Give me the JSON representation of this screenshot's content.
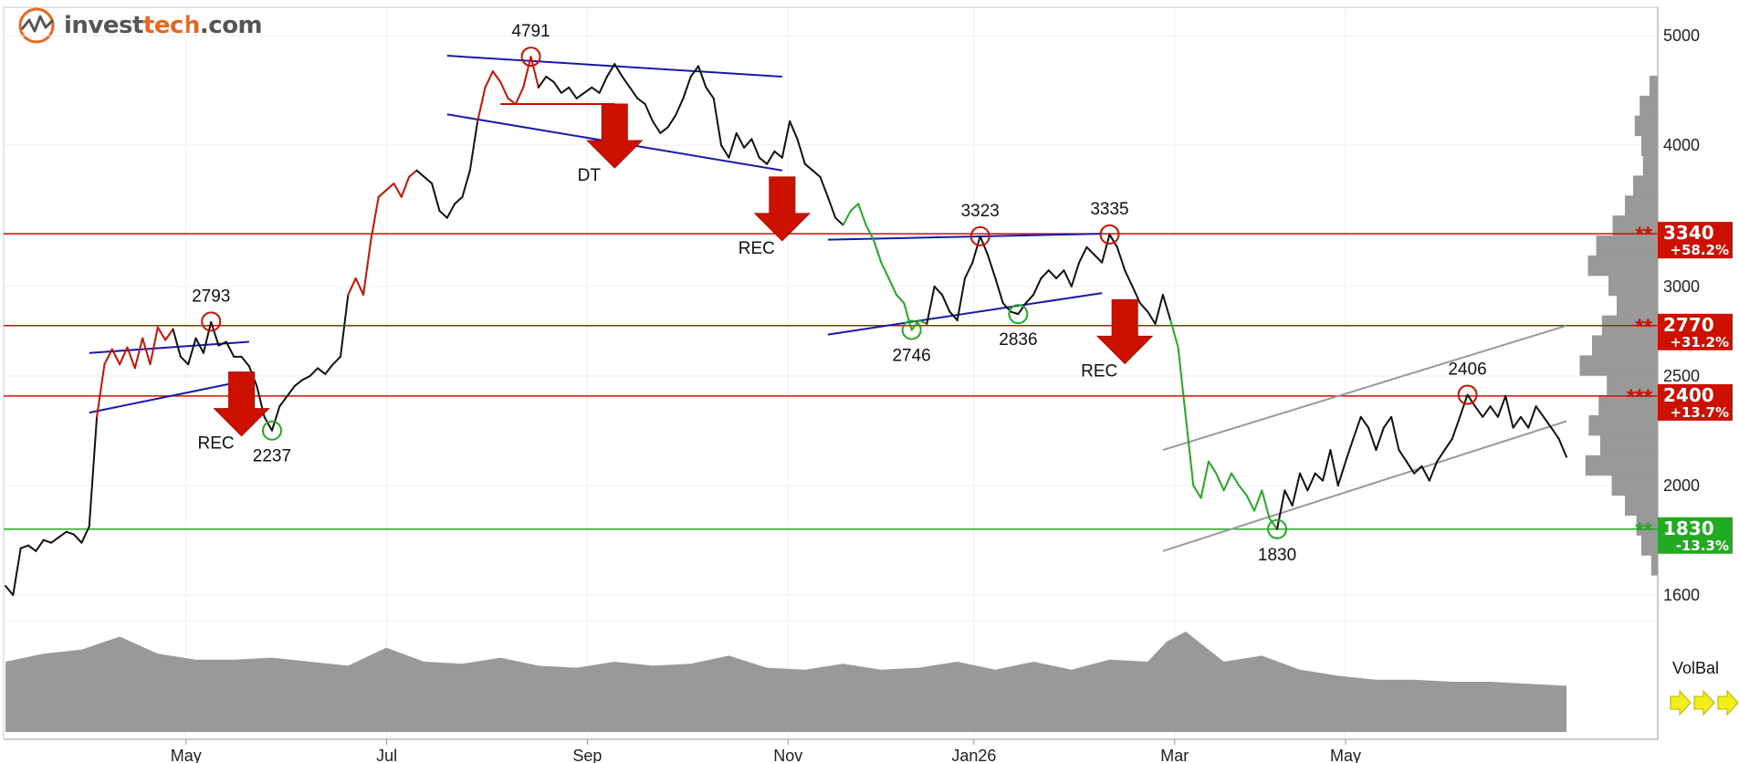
{
  "logo": {
    "pre": "invest",
    "accent": "tech",
    "post": ".com"
  },
  "chart_data": {
    "type": "line",
    "x_ticks": [
      "May",
      "Jul",
      "Sep",
      "Nov",
      "Jan26",
      "Mar",
      "May"
    ],
    "y_ticks": [
      "5000",
      "4000",
      "3000",
      "2500",
      "2000",
      "1600"
    ],
    "ylim": [
      1600,
      5200
    ],
    "y_scale": "log",
    "grid": true,
    "price": [
      [
        0,
        1630
      ],
      [
        2,
        1600
      ],
      [
        4,
        1760
      ],
      [
        6,
        1770
      ],
      [
        8,
        1750
      ],
      [
        10,
        1790
      ],
      [
        12,
        1780
      ],
      [
        14,
        1800
      ],
      [
        16,
        1820
      ],
      [
        18,
        1810
      ],
      [
        20,
        1780
      ],
      [
        22,
        1840
      ],
      [
        24,
        2300
      ],
      [
        26,
        2560
      ],
      [
        28,
        2640
      ],
      [
        30,
        2560
      ],
      [
        32,
        2650
      ],
      [
        34,
        2540
      ],
      [
        36,
        2700
      ],
      [
        38,
        2560
      ],
      [
        40,
        2760
      ],
      [
        42,
        2690
      ],
      [
        44,
        2750
      ],
      [
        46,
        2600
      ],
      [
        48,
        2560
      ],
      [
        50,
        2700
      ],
      [
        52,
        2620
      ],
      [
        54,
        2790
      ],
      [
        56,
        2660
      ],
      [
        58,
        2680
      ],
      [
        60,
        2600
      ],
      [
        62,
        2600
      ],
      [
        64,
        2550
      ],
      [
        66,
        2450
      ],
      [
        68,
        2300
      ],
      [
        70,
        2237
      ],
      [
        72,
        2350
      ],
      [
        74,
        2400
      ],
      [
        76,
        2450
      ],
      [
        78,
        2480
      ],
      [
        80,
        2500
      ],
      [
        82,
        2540
      ],
      [
        84,
        2510
      ],
      [
        86,
        2560
      ],
      [
        88,
        2600
      ],
      [
        90,
        2950
      ],
      [
        92,
        3050
      ],
      [
        94,
        2950
      ],
      [
        96,
        3300
      ],
      [
        98,
        3600
      ],
      [
        100,
        3650
      ],
      [
        102,
        3700
      ],
      [
        104,
        3600
      ],
      [
        106,
        3750
      ],
      [
        108,
        3800
      ],
      [
        110,
        3750
      ],
      [
        112,
        3700
      ],
      [
        114,
        3500
      ],
      [
        116,
        3450
      ],
      [
        118,
        3550
      ],
      [
        120,
        3600
      ],
      [
        122,
        3800
      ],
      [
        124,
        4200
      ],
      [
        126,
        4500
      ],
      [
        128,
        4650
      ],
      [
        130,
        4550
      ],
      [
        132,
        4400
      ],
      [
        134,
        4350
      ],
      [
        136,
        4500
      ],
      [
        138,
        4791
      ],
      [
        140,
        4500
      ],
      [
        142,
        4600
      ],
      [
        144,
        4550
      ],
      [
        146,
        4450
      ],
      [
        148,
        4500
      ],
      [
        150,
        4400
      ],
      [
        152,
        4450
      ],
      [
        154,
        4500
      ],
      [
        156,
        4450
      ],
      [
        158,
        4600
      ],
      [
        160,
        4720
      ],
      [
        162,
        4600
      ],
      [
        164,
        4500
      ],
      [
        166,
        4400
      ],
      [
        168,
        4350
      ],
      [
        170,
        4200
      ],
      [
        172,
        4100
      ],
      [
        174,
        4150
      ],
      [
        176,
        4250
      ],
      [
        178,
        4400
      ],
      [
        180,
        4600
      ],
      [
        182,
        4700
      ],
      [
        184,
        4500
      ],
      [
        186,
        4400
      ],
      [
        188,
        4000
      ],
      [
        190,
        3900
      ],
      [
        192,
        4100
      ],
      [
        194,
        3980
      ],
      [
        196,
        4050
      ],
      [
        198,
        3900
      ],
      [
        200,
        3850
      ],
      [
        202,
        3950
      ],
      [
        204,
        3900
      ],
      [
        206,
        4200
      ],
      [
        208,
        4050
      ],
      [
        210,
        3850
      ],
      [
        212,
        3800
      ],
      [
        214,
        3750
      ],
      [
        216,
        3600
      ],
      [
        218,
        3450
      ],
      [
        220,
        3400
      ],
      [
        222,
        3500
      ],
      [
        224,
        3550
      ],
      [
        226,
        3400
      ],
      [
        228,
        3300
      ],
      [
        230,
        3150
      ],
      [
        232,
        3050
      ],
      [
        234,
        2950
      ],
      [
        236,
        2900
      ],
      [
        238,
        2746
      ],
      [
        240,
        2800
      ],
      [
        242,
        2780
      ],
      [
        244,
        3000
      ],
      [
        246,
        2950
      ],
      [
        248,
        2850
      ],
      [
        250,
        2800
      ],
      [
        252,
        3050
      ],
      [
        254,
        3150
      ],
      [
        256,
        3323
      ],
      [
        258,
        3200
      ],
      [
        260,
        3050
      ],
      [
        262,
        2900
      ],
      [
        264,
        2850
      ],
      [
        266,
        2836
      ],
      [
        268,
        2900
      ],
      [
        270,
        2950
      ],
      [
        272,
        3050
      ],
      [
        274,
        3100
      ],
      [
        276,
        3050
      ],
      [
        278,
        3100
      ],
      [
        280,
        3000
      ],
      [
        282,
        3150
      ],
      [
        284,
        3250
      ],
      [
        286,
        3200
      ],
      [
        288,
        3150
      ],
      [
        290,
        3335
      ],
      [
        292,
        3250
      ],
      [
        294,
        3100
      ],
      [
        296,
        3000
      ],
      [
        298,
        2900
      ],
      [
        300,
        2850
      ],
      [
        302,
        2780
      ],
      [
        304,
        2950
      ],
      [
        306,
        2800
      ],
      [
        308,
        2650
      ],
      [
        310,
        2300
      ],
      [
        312,
        2000
      ],
      [
        314,
        1950
      ],
      [
        316,
        2100
      ],
      [
        318,
        2050
      ],
      [
        320,
        1980
      ],
      [
        322,
        2050
      ],
      [
        324,
        2000
      ],
      [
        326,
        1960
      ],
      [
        328,
        1900
      ],
      [
        330,
        1980
      ],
      [
        332,
        1870
      ],
      [
        334,
        1830
      ],
      [
        336,
        1980
      ],
      [
        338,
        1920
      ],
      [
        340,
        2050
      ],
      [
        342,
        1980
      ],
      [
        344,
        2050
      ],
      [
        346,
        2020
      ],
      [
        348,
        2150
      ],
      [
        350,
        2000
      ],
      [
        352,
        2100
      ],
      [
        354,
        2200
      ],
      [
        356,
        2300
      ],
      [
        358,
        2250
      ],
      [
        360,
        2150
      ],
      [
        362,
        2250
      ],
      [
        364,
        2300
      ],
      [
        366,
        2150
      ],
      [
        368,
        2100
      ],
      [
        370,
        2050
      ],
      [
        372,
        2080
      ],
      [
        374,
        2020
      ],
      [
        376,
        2100
      ],
      [
        378,
        2150
      ],
      [
        380,
        2200
      ],
      [
        382,
        2300
      ],
      [
        384,
        2406
      ],
      [
        386,
        2350
      ],
      [
        388,
        2300
      ],
      [
        390,
        2350
      ],
      [
        392,
        2300
      ],
      [
        394,
        2400
      ],
      [
        396,
        2250
      ],
      [
        398,
        2300
      ],
      [
        400,
        2250
      ],
      [
        402,
        2350
      ],
      [
        404,
        2300
      ],
      [
        406,
        2250
      ],
      [
        408,
        2200
      ],
      [
        410,
        2120
      ]
    ],
    "price_colors": [
      {
        "from": 24,
        "to": 44,
        "color": "#cc1100"
      },
      {
        "from": 90,
        "to": 108,
        "color": "#cc1100"
      },
      {
        "from": 124,
        "to": 140,
        "color": "#cc1100"
      },
      {
        "from": 220,
        "to": 242,
        "color": "#22aa22"
      },
      {
        "from": 306,
        "to": 334,
        "color": "#22aa22"
      }
    ],
    "levels": [
      {
        "value": 3340,
        "label": "3340",
        "pct": "+58.2%",
        "color": "#cc1100",
        "marker": "**"
      },
      {
        "value": 2770,
        "label": "2770",
        "pct": "+31.2%",
        "color": "#cc1100",
        "marker": "**"
      },
      {
        "value": 2400,
        "label": "2400",
        "pct": "+13.7%",
        "color": "#cc1100",
        "marker": "***"
      },
      {
        "value": 1830,
        "label": "1830",
        "pct": "-13.3%",
        "color": "#22aa22",
        "marker": "**"
      }
    ],
    "trend_lines": [
      {
        "p1": [
          22,
          2620
        ],
        "p2": [
          64,
          2680
        ],
        "color": "#1a1aa8"
      },
      {
        "p1": [
          22,
          2320
        ],
        "p2": [
          64,
          2480
        ],
        "color": "#1a1aa8"
      },
      {
        "p1": [
          116,
          4800
        ],
        "p2": [
          204,
          4600
        ],
        "color": "#1a1aa8"
      },
      {
        "p1": [
          116,
          4260
        ],
        "p2": [
          204,
          3800
        ],
        "color": "#1a1aa8"
      },
      {
        "p1": [
          130,
          4350
        ],
        "p2": [
          160,
          4350
        ],
        "color": "#cc1100"
      },
      {
        "p1": [
          216,
          3300
        ],
        "p2": [
          288,
          3340
        ],
        "color": "#1a1aa8"
      },
      {
        "p1": [
          216,
          2720
        ],
        "p2": [
          288,
          2960
        ],
        "color": "#1a1aa8"
      },
      {
        "p1": [
          304,
          2150
        ],
        "p2": [
          410,
          2770
        ],
        "color": "#999999"
      },
      {
        "p1": [
          304,
          1750
        ],
        "p2": [
          410,
          2280
        ],
        "color": "#999999"
      }
    ],
    "annotations": [
      {
        "x": 54,
        "value": 2793,
        "label": "2793",
        "type": "top",
        "color": "#cc1100"
      },
      {
        "x": 70,
        "value": 2237,
        "label": "2237",
        "type": "bottom",
        "color": "#22aa22"
      },
      {
        "x": 138,
        "value": 4791,
        "label": "4791",
        "type": "top",
        "color": "#cc1100"
      },
      {
        "x": 238,
        "value": 2746,
        "label": "2746",
        "type": "bottom",
        "color": "#22aa22"
      },
      {
        "x": 256,
        "value": 3323,
        "label": "3323",
        "type": "top",
        "color": "#cc1100"
      },
      {
        "x": 266,
        "value": 2836,
        "label": "2836",
        "type": "bottom",
        "color": "#22aa22"
      },
      {
        "x": 290,
        "value": 3335,
        "label": "3335",
        "type": "top",
        "color": "#cc1100"
      },
      {
        "x": 334,
        "value": 1830,
        "label": "1830",
        "type": "bottom",
        "color": "#22aa22"
      },
      {
        "x": 384,
        "value": 2406,
        "label": "2406",
        "type": "top",
        "color": "#cc1100"
      }
    ],
    "signals": [
      {
        "x": 62,
        "value": 2520,
        "label": "REC"
      },
      {
        "x": 160,
        "value": 4350,
        "label": "DT"
      },
      {
        "x": 204,
        "value": 3750,
        "label": "REC"
      },
      {
        "x": 294,
        "value": 2920,
        "label": "REC"
      }
    ],
    "volume": [
      [
        0,
        0.7
      ],
      [
        10,
        0.78
      ],
      [
        20,
        0.82
      ],
      [
        30,
        0.95
      ],
      [
        40,
        0.78
      ],
      [
        50,
        0.72
      ],
      [
        60,
        0.72
      ],
      [
        70,
        0.74
      ],
      [
        80,
        0.7
      ],
      [
        90,
        0.66
      ],
      [
        100,
        0.84
      ],
      [
        110,
        0.7
      ],
      [
        120,
        0.68
      ],
      [
        130,
        0.74
      ],
      [
        140,
        0.66
      ],
      [
        150,
        0.64
      ],
      [
        160,
        0.7
      ],
      [
        170,
        0.66
      ],
      [
        180,
        0.68
      ],
      [
        190,
        0.76
      ],
      [
        200,
        0.64
      ],
      [
        210,
        0.62
      ],
      [
        220,
        0.68
      ],
      [
        230,
        0.62
      ],
      [
        240,
        0.64
      ],
      [
        250,
        0.7
      ],
      [
        260,
        0.62
      ],
      [
        270,
        0.7
      ],
      [
        280,
        0.62
      ],
      [
        290,
        0.72
      ],
      [
        300,
        0.7
      ],
      [
        305,
        0.9
      ],
      [
        310,
        1.0
      ],
      [
        315,
        0.85
      ],
      [
        320,
        0.7
      ],
      [
        330,
        0.76
      ],
      [
        340,
        0.62
      ],
      [
        350,
        0.56
      ],
      [
        360,
        0.52
      ],
      [
        370,
        0.52
      ],
      [
        380,
        0.5
      ],
      [
        390,
        0.5
      ],
      [
        400,
        0.48
      ],
      [
        410,
        0.46
      ]
    ],
    "volume_label": "VolBal",
    "volume_profile": [
      0.0,
      0.1,
      0.22,
      0.28,
      0.2,
      0.18,
      0.3,
      0.4,
      0.55,
      0.75,
      0.85,
      0.6,
      0.5,
      0.68,
      0.8,
      0.95,
      0.62,
      0.72,
      0.84,
      0.7,
      0.88,
      0.56,
      0.4,
      0.26,
      0.2,
      0.08,
      0.0
    ]
  }
}
